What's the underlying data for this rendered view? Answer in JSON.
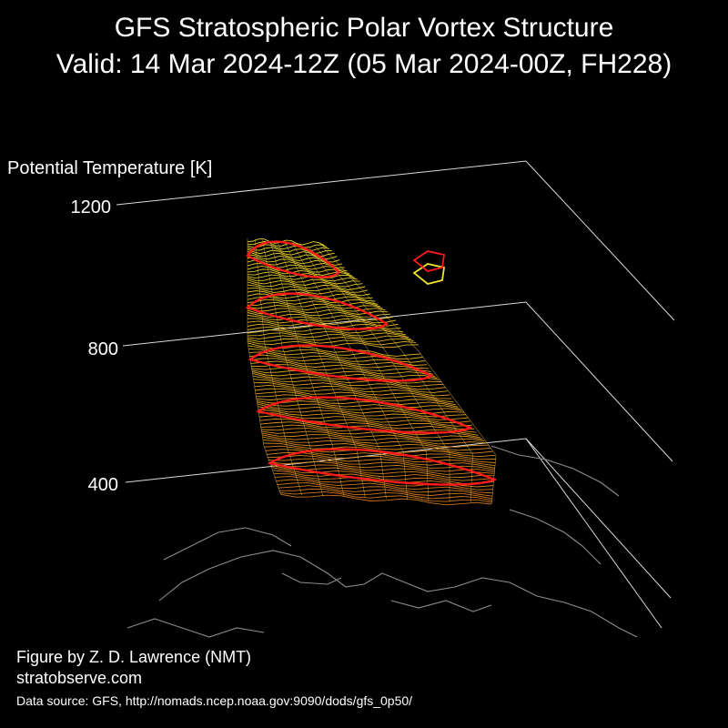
{
  "header": {
    "title_line1": "GFS Stratospheric Polar Vortex Structure",
    "title_line2": "Valid: 14 Mar 2024-12Z  (05 Mar 2024-00Z, FH228)"
  },
  "footer": {
    "credit": "Figure by Z. D. Lawrence (NMT)",
    "website": "stratobserve.com",
    "data_source": "Data source: GFS, http://nomads.ncep.noaa.gov:9090/dods/gfs_0p50/"
  },
  "chart_data": {
    "type": "3d-isosurface",
    "zlabel": "Potential Temperature [K]",
    "z_ticks": [
      400,
      800,
      1200
    ],
    "zlim": [
      0,
      1200
    ],
    "grid": true,
    "background_color": "#000000",
    "colors": {
      "surface_low": "#d77a1a",
      "surface_high": "#f2e32b",
      "contour": "#ff1a1a",
      "coastline": "#8c8c8c",
      "axis_lines": "#d9d9d9"
    },
    "vortex_contour_levels_K": [
      450,
      600,
      750,
      900,
      1050
    ],
    "vortex_top_K": 1100,
    "fragment_K": [
      950,
      1000
    ]
  }
}
